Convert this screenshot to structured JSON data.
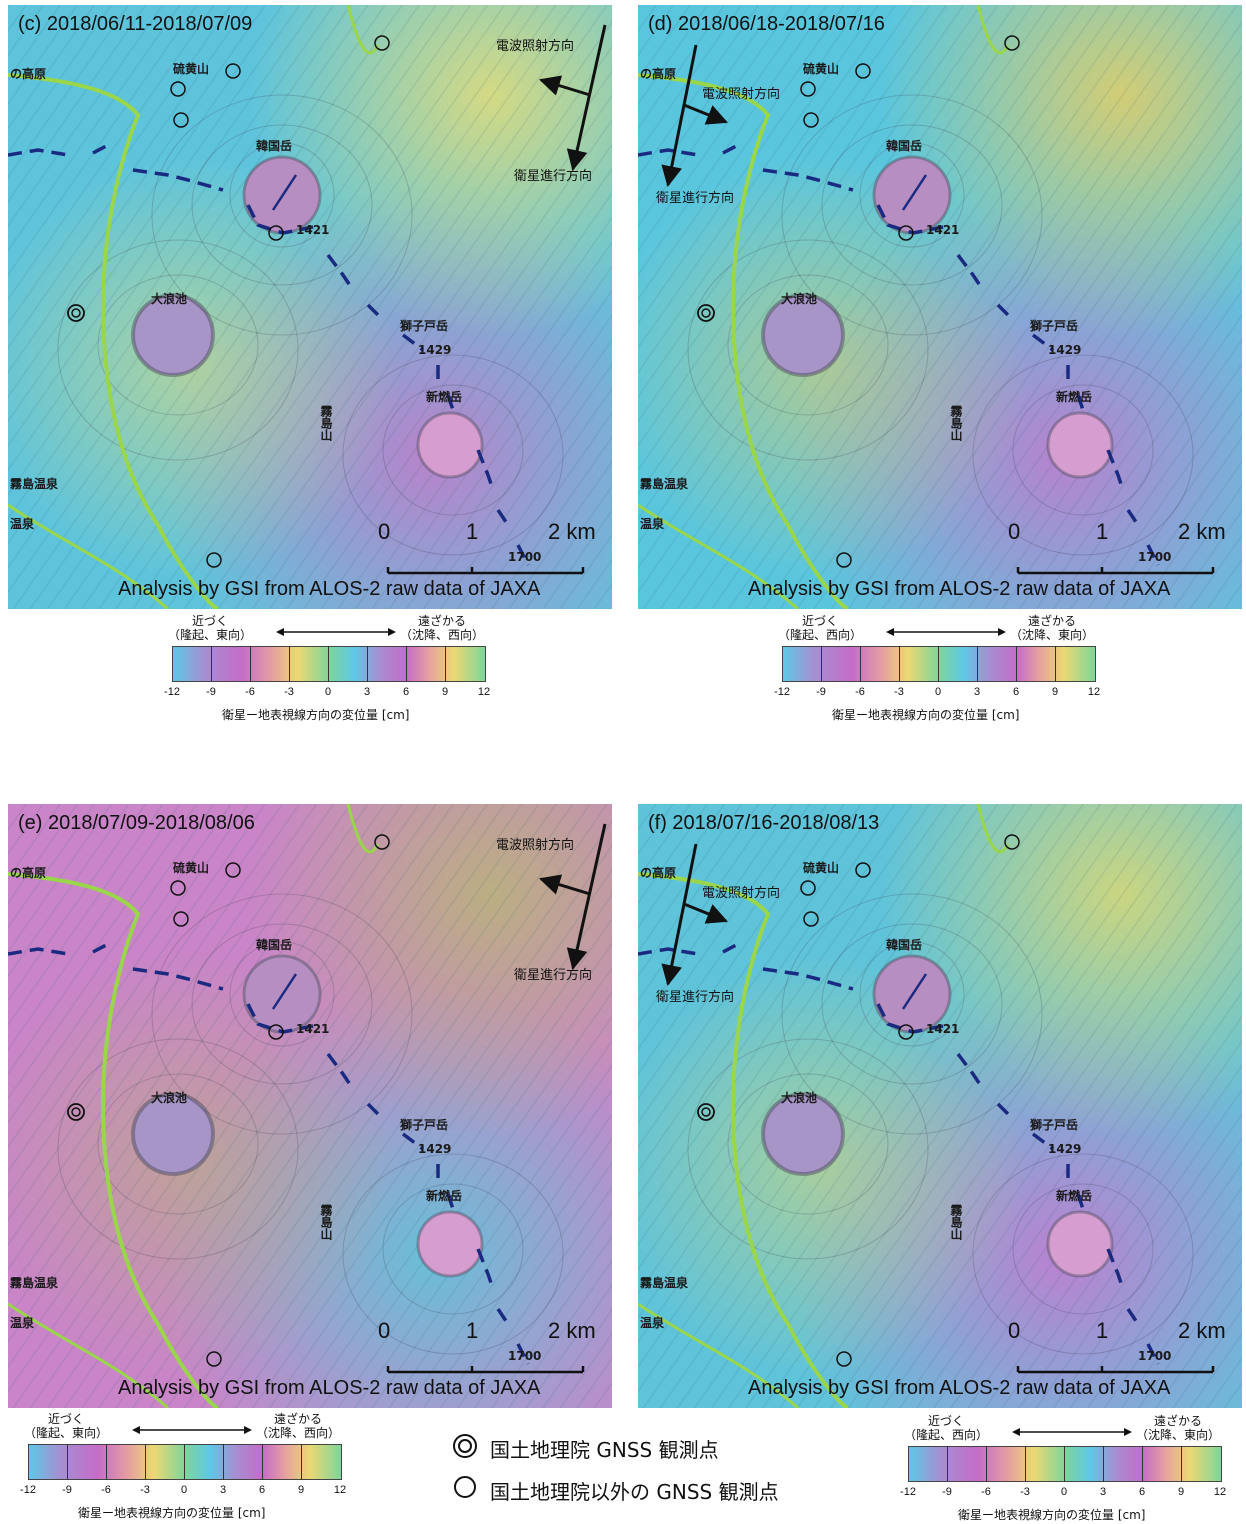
{
  "panels": [
    {
      "title": "(c) 2018/06/11-2018/07/09",
      "radar_label": "電波照射方向",
      "track_label": "衛星進行方向",
      "credit": "Analysis by GSI from ALOS-2 raw data of JAXA",
      "colorbar": {
        "near": "近づく",
        "near_detail": "（隆起、東向）",
        "far": "遠ざかる",
        "far_detail": "（沈降、西向）",
        "caption": "衛星ー地表視線方向の変位量 [cm]"
      }
    },
    {
      "title": "(d) 2018/06/18-2018/07/16",
      "radar_label": "電波照射方向",
      "track_label": "衛星進行方向",
      "credit": "Analysis by GSI from ALOS-2 raw data of JAXA",
      "colorbar": {
        "near": "近づく",
        "near_detail": "（隆起、西向）",
        "far": "遠ざかる",
        "far_detail": "（沈降、東向）",
        "caption": "衛星ー地表視線方向の変位量 [cm]"
      }
    },
    {
      "title": "(e) 2018/07/09-2018/08/06",
      "radar_label": "電波照射方向",
      "track_label": "衛星進行方向",
      "credit": "Analysis by GSI from ALOS-2 raw data of JAXA",
      "colorbar": {
        "near": "近づく",
        "near_detail": "（隆起、東向）",
        "far": "遠ざかる",
        "far_detail": "（沈降、西向）",
        "caption": "衛星ー地表視線方向の変位量 [cm]"
      }
    },
    {
      "title": "(f) 2018/07/16-2018/08/13",
      "radar_label": "電波照射方向",
      "track_label": "衛星進行方向",
      "credit": "Analysis by GSI from ALOS-2 raw data of JAXA",
      "colorbar": {
        "near": "近づく",
        "near_detail": "（隆起、西向）",
        "far": "遠ざかる",
        "far_detail": "（沈降、東向）",
        "caption": "衛星ー地表視線方向の変位量 [cm]"
      }
    }
  ],
  "places": {
    "iou": "硫黄山",
    "karakuni": "韓国岳",
    "onami": "大浪池",
    "shishiko": "獅子戸岳",
    "shinmoe": "新燃岳",
    "kirishima": "霧島山",
    "plateau": "の高原",
    "onsen": "霧島温泉",
    "onsen2": "温泉",
    "elev1": "1429",
    "elev2": "1421",
    "elev3": "1700"
  },
  "scale": {
    "zero": "0",
    "one": "1",
    "two": "2 km"
  },
  "colorbar_ticks": [
    "-12",
    "-9",
    "-6",
    "-3",
    "0",
    "3",
    "6",
    "9",
    "12"
  ],
  "legend": {
    "gsi_station": "国土地理院 GNSS 観測点",
    "other_station": "国土地理院以外の GNSS 観測点"
  },
  "colors": {
    "cyan": "#56c8df",
    "magenta": "#c274c8",
    "yellow": "#e6df6e",
    "green_road": "#9ad64a",
    "boundary": "#1a2a80"
  }
}
